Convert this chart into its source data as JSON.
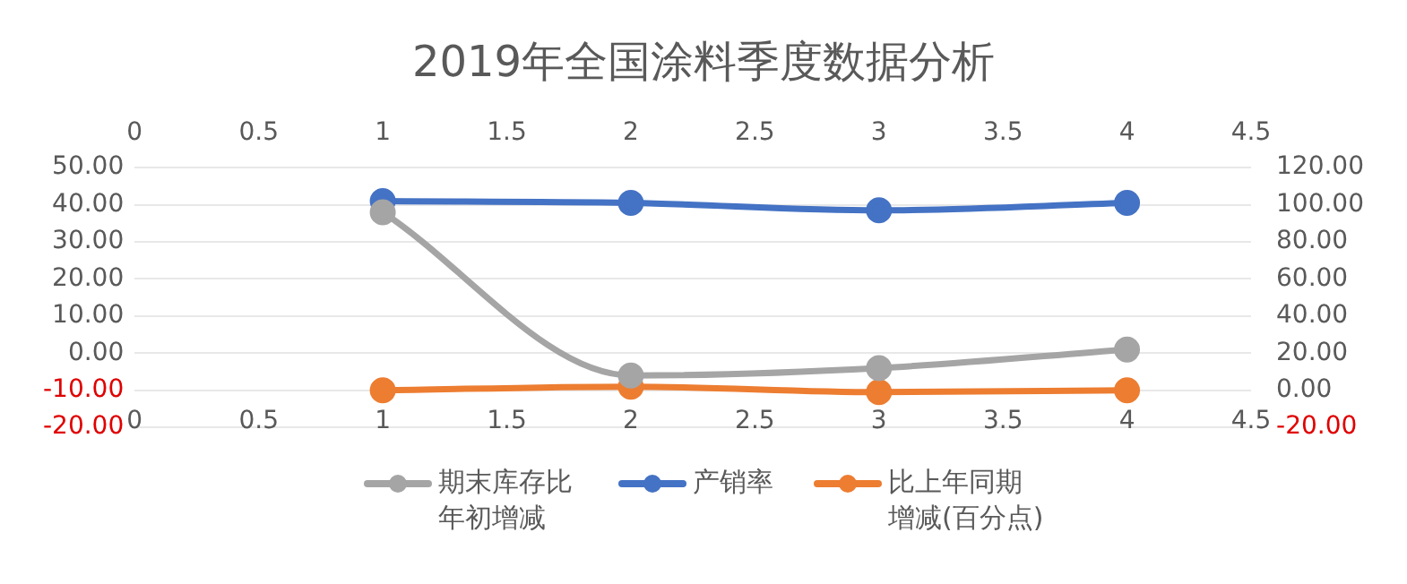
{
  "chart_data": {
    "type": "line",
    "title": "2019年全国涂料季度数据分析",
    "x": [
      1,
      2,
      3,
      4
    ],
    "series": [
      {
        "name": "期末库存比年初增减",
        "color": "#a5a5a5",
        "values": [
          38,
          -6,
          -4,
          1
        ],
        "axis": "y"
      },
      {
        "name": "产销率",
        "color": "#4472c4",
        "values": [
          102,
          101,
          97,
          101
        ],
        "axis": "y2"
      },
      {
        "name": "比上年同期增减(百分点)",
        "color": "#ed7d31",
        "values": [
          0,
          2,
          -1,
          0
        ],
        "axis": "y2"
      }
    ],
    "xlim": [
      0,
      4.5
    ],
    "xticks": [
      0,
      0.5,
      1,
      1.5,
      2,
      2.5,
      3,
      3.5,
      4,
      4.5
    ],
    "x2lim": [
      0,
      4.5
    ],
    "x2ticks": [
      0,
      0.5,
      1,
      1.5,
      2,
      2.5,
      3,
      3.5,
      4,
      4.5
    ],
    "ylim": [
      -20,
      50
    ],
    "yticks": [
      {
        "value": -20,
        "label": "-20.00"
      },
      {
        "value": -10,
        "label": "-10.00"
      },
      {
        "value": 0,
        "label": "0.00"
      },
      {
        "value": 10,
        "label": "10.00"
      },
      {
        "value": 20,
        "label": "20.00"
      },
      {
        "value": 30,
        "label": "30.00"
      },
      {
        "value": 40,
        "label": "40.00"
      },
      {
        "value": 50,
        "label": "50.00"
      }
    ],
    "y2lim": [
      -20,
      120
    ],
    "y2ticks": [
      {
        "value": -20,
        "label": "-20.00"
      },
      {
        "value": 0,
        "label": "0.00"
      },
      {
        "value": 20,
        "label": "20.00"
      },
      {
        "value": 40,
        "label": "40.00"
      },
      {
        "value": 60,
        "label": "60.00"
      },
      {
        "value": 80,
        "label": "80.00"
      },
      {
        "value": 100,
        "label": "100.00"
      },
      {
        "value": 120,
        "label": "120.00"
      }
    ],
    "grid": "y",
    "legend": "bottom",
    "marker": "circle",
    "line_style": "solid"
  }
}
